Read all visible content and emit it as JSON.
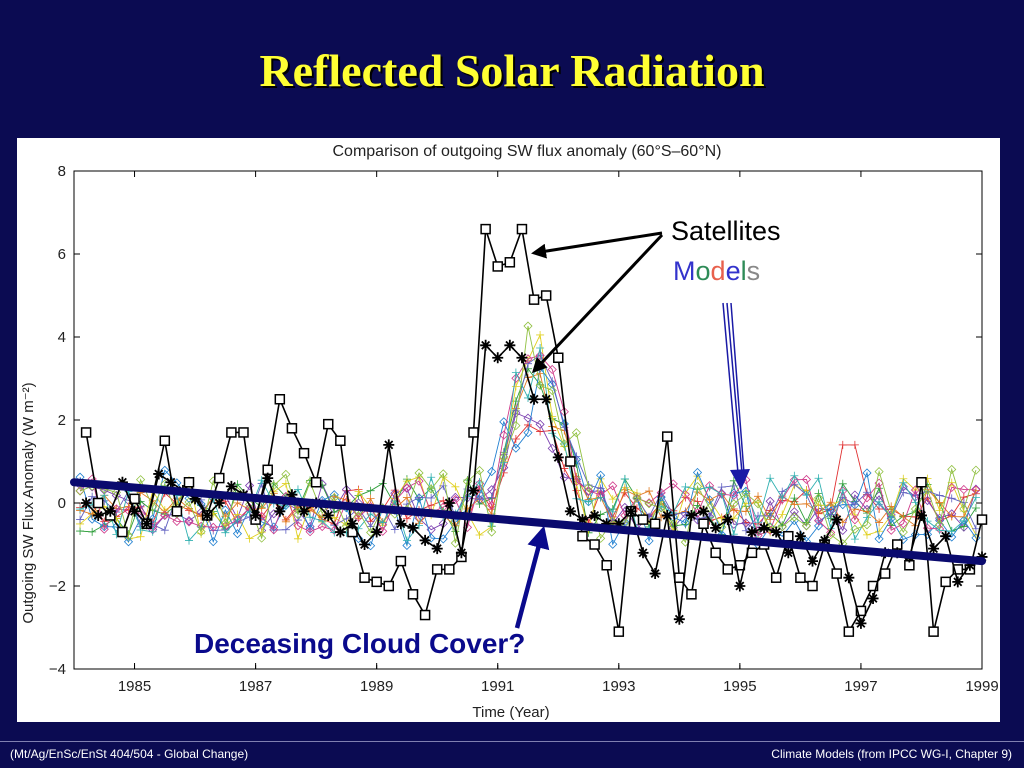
{
  "slide": {
    "title": "Reflected Solar Radiation",
    "footer_left": "(Mt/Ag/EnSc/EnSt 404/504 - Global Change)",
    "footer_right": "Climate Models  (from IPCC WG-I, Chapter 9)"
  },
  "annotations": {
    "satellites": "Satellites",
    "models_letters": [
      "M",
      "o",
      "d",
      "e",
      "l",
      "s"
    ],
    "models_colors": [
      "#3333cc",
      "#2e8b57",
      "#e8604c",
      "#3333cc",
      "#2e8b57",
      "#888888"
    ],
    "cloud_cover": "Deceasing Cloud Cover?",
    "arrow_color": "#000000",
    "models_arrow_color": "#1a1aa6",
    "trend_color": "#0a0a6e",
    "cloud_text_color": "#0a0a8c"
  },
  "chart_data": {
    "type": "line",
    "title": "Comparison of outgoing SW flux anomaly (60°S–60°N)",
    "xlabel": "Time (Year)",
    "ylabel": "Outgoing SW Flux Anomaly (W m⁻²)",
    "xlim": [
      1984,
      1999
    ],
    "ylim": [
      -4,
      8
    ],
    "xticks": [
      1985,
      1987,
      1989,
      1991,
      1993,
      1995,
      1997,
      1999
    ],
    "yticks": [
      -4,
      -2,
      0,
      2,
      4,
      6,
      8
    ],
    "ytick_labels": [
      "−4",
      "−2",
      "0",
      "2",
      "4",
      "6",
      "8"
    ],
    "series": [
      {
        "marker": "square",
        "color": "#000000",
        "x": [
          1984.2,
          1984.4,
          1984.6,
          1984.8,
          1985.0,
          1985.2,
          1985.5,
          1985.7,
          1985.9,
          1986.2,
          1986.4,
          1986.6,
          1986.8,
          1987.0,
          1987.2,
          1987.4,
          1987.6,
          1987.8,
          1988.0,
          1988.2,
          1988.4,
          1988.6,
          1988.8,
          1989.0,
          1989.2,
          1989.4,
          1989.6,
          1989.8,
          1990.0,
          1990.2,
          1990.4,
          1990.6,
          1990.8,
          1991.0,
          1991.2,
          1991.4,
          1991.6,
          1991.8,
          1992.0,
          1992.2,
          1992.4,
          1992.6,
          1992.8,
          1993.0,
          1993.2,
          1993.4,
          1993.6,
          1993.8,
          1994.0,
          1994.2,
          1994.4,
          1994.6,
          1994.8,
          1995.0,
          1995.2,
          1995.4,
          1995.6,
          1995.8,
          1996.0,
          1996.2,
          1996.4,
          1996.6,
          1996.8,
          1997.0,
          1997.2,
          1997.4,
          1997.6,
          1997.8,
          1998.0,
          1998.2,
          1998.4,
          1998.6,
          1998.8,
          1999.0
        ],
        "y": [
          1.7,
          0.0,
          -0.3,
          -0.7,
          0.1,
          -0.5,
          1.5,
          -0.2,
          0.5,
          -0.3,
          0.6,
          1.7,
          1.7,
          -0.4,
          0.8,
          2.5,
          1.8,
          1.2,
          0.5,
          1.9,
          1.5,
          -0.7,
          -1.8,
          -1.9,
          -2.0,
          -1.4,
          -2.2,
          -2.7,
          -1.6,
          -1.6,
          -1.3,
          1.7,
          6.6,
          5.7,
          5.8,
          6.6,
          4.9,
          5.0,
          3.5,
          1.0,
          -0.8,
          -1.0,
          -1.5,
          -3.1,
          -0.2,
          -0.4,
          -0.5,
          1.6,
          -1.8,
          -2.2,
          -0.5,
          -1.2,
          -1.6,
          -1.5,
          -1.2,
          -1.0,
          -1.8,
          -0.8,
          -1.8,
          -2.0,
          -1.0,
          -1.7,
          -3.1,
          -2.6,
          -2.0,
          -1.7,
          -1.0,
          -1.5,
          0.5,
          -3.1,
          -1.9,
          -1.6,
          -1.6,
          -0.4
        ]
      },
      {
        "marker": "star",
        "color": "#000000",
        "x": [
          1984.2,
          1984.4,
          1984.6,
          1984.8,
          1985.0,
          1985.2,
          1985.4,
          1985.6,
          1985.8,
          1986.0,
          1986.2,
          1986.4,
          1986.6,
          1986.8,
          1987.0,
          1987.2,
          1987.4,
          1987.6,
          1987.8,
          1988.0,
          1988.2,
          1988.4,
          1988.6,
          1988.8,
          1989.0,
          1989.2,
          1989.4,
          1989.6,
          1989.8,
          1990.0,
          1990.2,
          1990.4,
          1990.6,
          1990.8,
          1991.0,
          1991.2,
          1991.4,
          1991.6,
          1991.8,
          1992.0,
          1992.2,
          1992.4,
          1992.6,
          1992.8,
          1993.0,
          1993.2,
          1993.4,
          1993.6,
          1993.8,
          1994.0,
          1994.2,
          1994.4,
          1994.6,
          1994.8,
          1995.0,
          1995.2,
          1995.4,
          1995.6,
          1995.8,
          1996.0,
          1996.2,
          1996.4,
          1996.6,
          1996.8,
          1997.0,
          1997.2,
          1997.4,
          1997.6,
          1997.8,
          1998.0,
          1998.2,
          1998.4,
          1998.6,
          1998.8,
          1999.0
        ],
        "y": [
          0.0,
          -0.3,
          -0.2,
          0.5,
          -0.2,
          -0.5,
          0.7,
          0.5,
          0.3,
          0.1,
          -0.3,
          0.0,
          0.4,
          0.2,
          -0.3,
          0.6,
          -0.2,
          0.2,
          -0.2,
          0.0,
          -0.3,
          -0.7,
          -0.5,
          -1.0,
          -0.7,
          1.4,
          -0.5,
          -0.6,
          -0.9,
          -1.1,
          0.0,
          -1.2,
          0.3,
          3.8,
          3.5,
          3.8,
          3.5,
          2.5,
          2.5,
          1.1,
          -0.2,
          -0.4,
          -0.3,
          -0.5,
          -0.5,
          -0.2,
          -1.2,
          -1.7,
          -0.3,
          -2.8,
          -0.3,
          -0.2,
          -0.6,
          -0.4,
          -2.0,
          -0.7,
          -0.6,
          -0.7,
          -1.2,
          -0.8,
          -1.4,
          -0.9,
          -0.4,
          -1.8,
          -2.9,
          -2.3,
          -1.2,
          -1.2,
          -1.3,
          -0.3,
          -1.1,
          -0.8,
          -1.9,
          -1.5,
          -1.3
        ]
      }
    ],
    "model_series": [
      {
        "color": "#e03030",
        "marker": "plus"
      },
      {
        "color": "#7b3fb0",
        "marker": "diamond"
      },
      {
        "color": "#2e9e3a",
        "marker": "plus"
      },
      {
        "color": "#e0d020",
        "marker": "plus"
      },
      {
        "color": "#1f7fd0",
        "marker": "diamond"
      },
      {
        "color": "#e07a20",
        "marker": "plus"
      },
      {
        "color": "#6060c0",
        "marker": "plus"
      },
      {
        "color": "#d03a8a",
        "marker": "diamond"
      },
      {
        "color": "#30b0b0",
        "marker": "plus"
      },
      {
        "color": "#90c040",
        "marker": "diamond"
      }
    ],
    "trend_line": {
      "x": [
        1984.0,
        1999.0
      ],
      "y": [
        0.5,
        -1.4
      ]
    }
  }
}
